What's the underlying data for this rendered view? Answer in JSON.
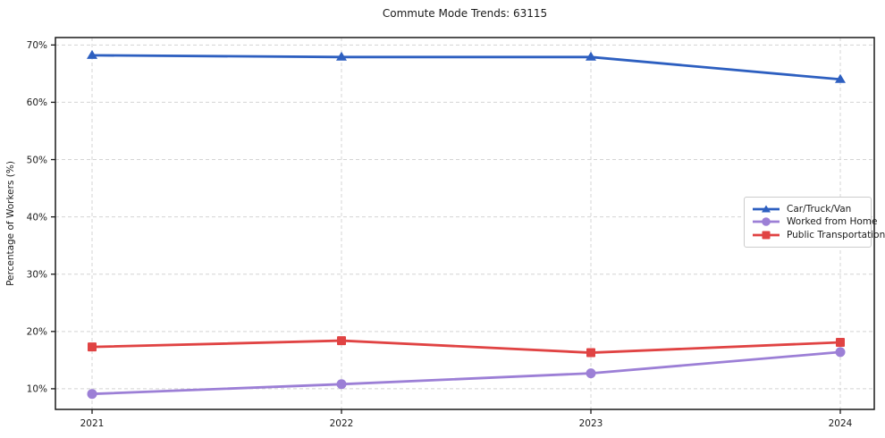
{
  "chart_data": {
    "type": "line",
    "title": "Commute Mode Trends: 63115",
    "xlabel": "",
    "ylabel": "Percentage of Workers (%)",
    "categories": [
      "2021",
      "2022",
      "2023",
      "2024"
    ],
    "series": [
      {
        "name": "Car/Truck/Van",
        "color": "#2d5fc0",
        "marker": "triangle",
        "values": [
          68.2,
          67.9,
          67.9,
          64.0
        ]
      },
      {
        "name": "Worked from Home",
        "color": "#9c7fd6",
        "marker": "circle",
        "values": [
          9.1,
          10.8,
          12.7,
          16.4
        ]
      },
      {
        "name": "Public Transportation",
        "color": "#e04343",
        "marker": "square",
        "values": [
          17.3,
          18.4,
          16.3,
          18.1
        ]
      }
    ],
    "yticks": [
      10,
      20,
      30,
      40,
      50,
      60,
      70
    ],
    "ytick_format": "{v}%",
    "ylim": [
      6.4,
      71.3
    ],
    "grid": true,
    "grid_style": "dashed",
    "legend_position": "center-right"
  },
  "colors": {
    "grid": "#d4d4d4",
    "spine": "#1a1a1a",
    "tick_text": "#1a1a1a",
    "background": "#ffffff",
    "legend_border": "#cccccc"
  }
}
